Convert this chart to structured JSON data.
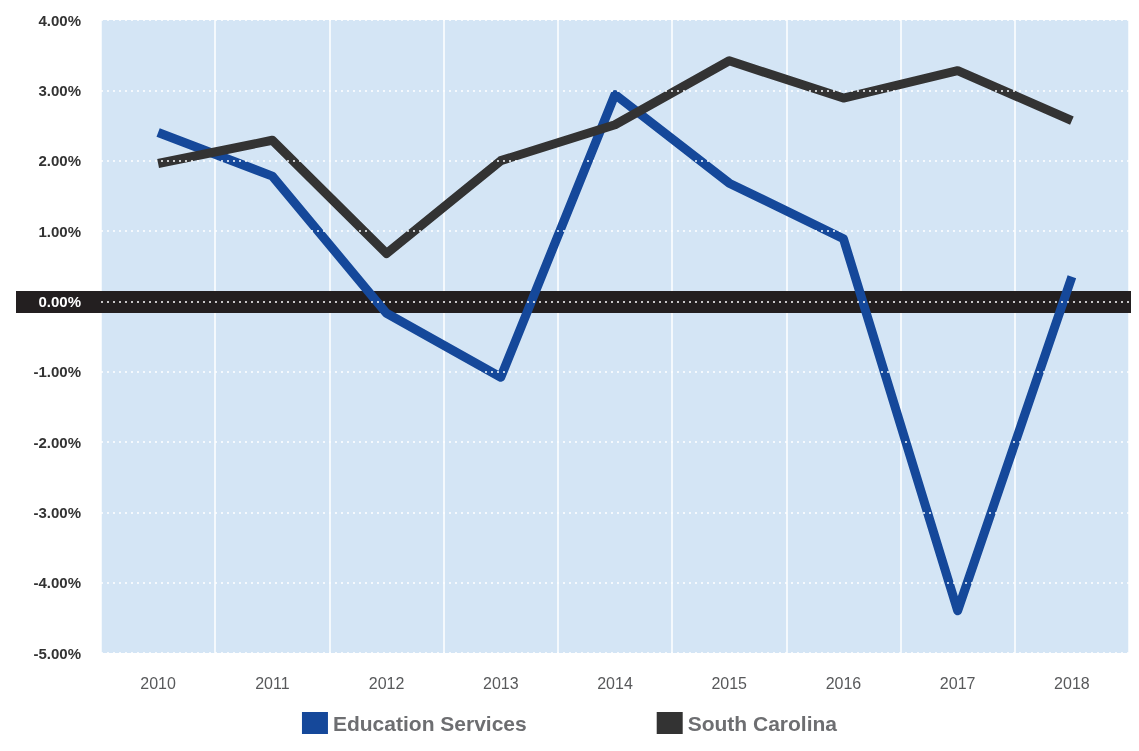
{
  "chart_data": {
    "type": "line",
    "categories": [
      "2010",
      "2011",
      "2012",
      "2013",
      "2014",
      "2015",
      "2016",
      "2017",
      "2018"
    ],
    "series": [
      {
        "name": "Education Services",
        "color": "#15489a",
        "values": [
          2.4,
          1.78,
          -0.17,
          -1.08,
          2.94,
          1.68,
          0.89,
          -4.4,
          0.35
        ]
      },
      {
        "name": "South Carolina",
        "color": "#333333",
        "values": [
          1.96,
          2.29,
          0.68,
          2.0,
          2.51,
          3.42,
          2.89,
          3.28,
          2.57
        ]
      }
    ],
    "ylim": [
      -5,
      4
    ],
    "yticks": [
      {
        "value": -5,
        "label": "-5.00%"
      },
      {
        "value": -4,
        "label": "-4.00%"
      },
      {
        "value": -3,
        "label": "-3.00%"
      },
      {
        "value": -2,
        "label": "-2.00%"
      },
      {
        "value": -1,
        "label": "-1.00%"
      },
      {
        "value": 0,
        "label": "0.00%"
      },
      {
        "value": 1,
        "label": "1.00%"
      },
      {
        "value": 2,
        "label": "2.00%"
      },
      {
        "value": 3,
        "label": "3.00%"
      },
      {
        "value": 4,
        "label": "4.00%"
      }
    ],
    "ref_lines": [
      {
        "axis": "y",
        "value": 0,
        "color": "#231f20"
      }
    ],
    "grid": true,
    "legend": "bottom",
    "marker": "none",
    "line_style": "solid"
  }
}
